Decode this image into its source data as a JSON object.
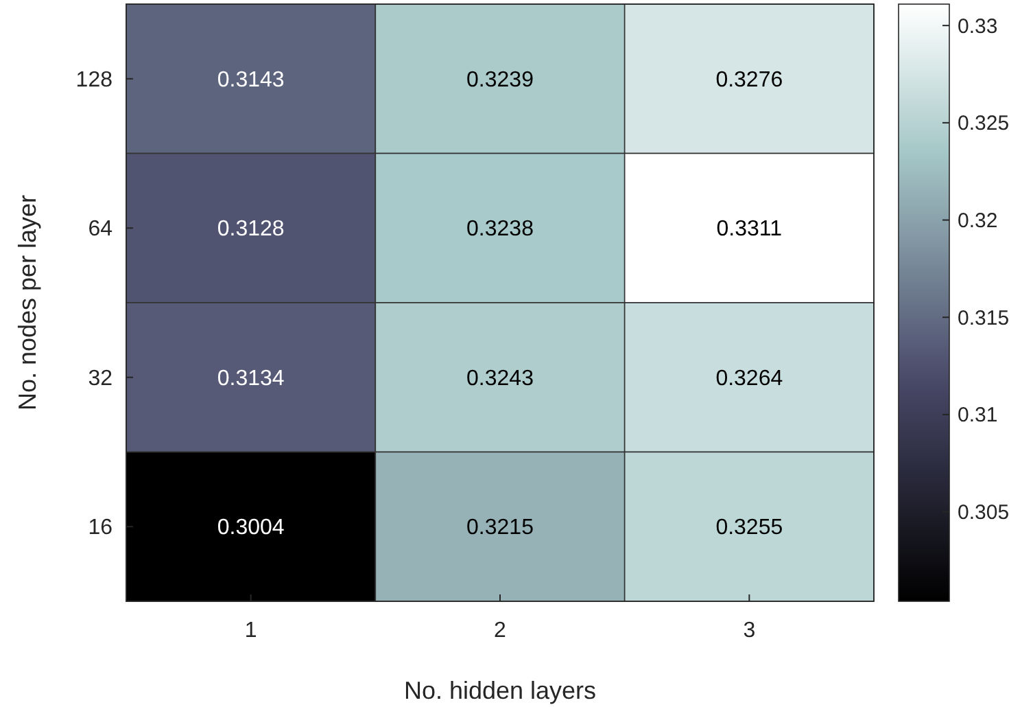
{
  "chart_data": {
    "type": "heatmap",
    "xlabel": "No. hidden layers",
    "ylabel": "No. nodes per layer",
    "categories": [
      "1",
      "2",
      "3"
    ],
    "y_categories": [
      "128",
      "64",
      "32",
      "16"
    ],
    "cells": [
      [
        0.3143,
        0.3239,
        0.3276
      ],
      [
        0.3128,
        0.3238,
        0.3311
      ],
      [
        0.3134,
        0.3243,
        0.3264
      ],
      [
        0.3004,
        0.3215,
        0.3255
      ]
    ],
    "data_labels": true,
    "clim": [
      0.3004,
      0.3311
    ],
    "cticks": [
      0.305,
      0.31,
      0.315,
      0.32,
      0.325,
      0.33
    ]
  }
}
